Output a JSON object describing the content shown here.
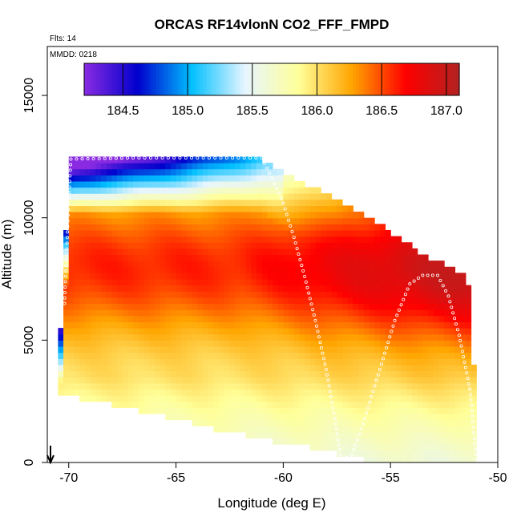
{
  "chart_data": {
    "type": "heatmap",
    "title": "ORCAS RF14vlonN CO2_FFF_FMPD",
    "annotations": [
      "Flts: 14",
      "MMDD: 0218"
    ],
    "xlabel": "Longitude (deg E)",
    "ylabel": "Altitude (m)",
    "xlim": [
      -71,
      -50
    ],
    "ylim": [
      0,
      17000
    ],
    "x_ticks": [
      -70,
      -65,
      -60,
      -55,
      -50
    ],
    "y_ticks": [
      0,
      5000,
      10000,
      15000
    ],
    "x_tick_labels": [
      "-70",
      "-65",
      "-60",
      "-55",
      "-50"
    ],
    "y_tick_labels": [
      "0",
      "5000",
      "10000",
      "15000"
    ],
    "colorbar": {
      "range": [
        184.2,
        187.1
      ],
      "ticks": [
        184.5,
        185.0,
        185.5,
        186.0,
        186.5,
        187.0
      ],
      "tick_labels": [
        "184.5",
        "185.0",
        "185.5",
        "186.0",
        "186.5",
        "187.0"
      ],
      "colors": [
        "#8a2be2",
        "#0000cd",
        "#00bfff",
        "#e6f5ff",
        "#ffff99",
        "#ffa500",
        "#ff0000",
        "#b22222"
      ]
    },
    "field_extent": [
      {
        "x": -70.6,
        "top": 2800,
        "bottom": 2800
      },
      {
        "x": -70.2,
        "top": 7800,
        "bottom": 2800
      },
      {
        "x": -70.0,
        "top": 12400,
        "bottom": 2800
      },
      {
        "x": -69.5,
        "top": 12450,
        "bottom": 2600
      },
      {
        "x": -69.0,
        "top": 12450,
        "bottom": 2600
      },
      {
        "x": -67.5,
        "top": 12450,
        "bottom": 2300
      },
      {
        "x": -66.0,
        "top": 12450,
        "bottom": 2000
      },
      {
        "x": -65.0,
        "top": 12450,
        "bottom": 1800
      },
      {
        "x": -63.5,
        "top": 12450,
        "bottom": 1400
      },
      {
        "x": -62.0,
        "top": 12450,
        "bottom": 1200
      },
      {
        "x": -61.0,
        "top": 12450,
        "bottom": 1000
      },
      {
        "x": -60.0,
        "top": 11800,
        "bottom": 800
      },
      {
        "x": -59.0,
        "top": 11400,
        "bottom": 700
      },
      {
        "x": -58.0,
        "top": 11000,
        "bottom": 500
      },
      {
        "x": -57.0,
        "top": 10500,
        "bottom": 300
      },
      {
        "x": -56.0,
        "top": 10000,
        "bottom": 100
      },
      {
        "x": -55.0,
        "top": 9400,
        "bottom": 100
      },
      {
        "x": -54.0,
        "top": 8800,
        "bottom": 100
      },
      {
        "x": -53.0,
        "top": 8300,
        "bottom": 100
      },
      {
        "x": -52.0,
        "top": 7900,
        "bottom": 100
      },
      {
        "x": -51.4,
        "top": 7700,
        "bottom": 100
      },
      {
        "x": -51.2,
        "top": 5000,
        "bottom": 100
      },
      {
        "x": -50.9,
        "top": 1200,
        "bottom": 100
      }
    ],
    "flight_track": [
      {
        "x": -70.2,
        "y": 6500
      },
      {
        "x": -70.1,
        "y": 8500
      },
      {
        "x": -70.0,
        "y": 10800
      },
      {
        "x": -69.9,
        "y": 12400
      },
      {
        "x": -67.0,
        "y": 12450
      },
      {
        "x": -64.0,
        "y": 12450
      },
      {
        "x": -61.0,
        "y": 12450
      },
      {
        "x": -60.4,
        "y": 11400
      },
      {
        "x": -60.0,
        "y": 10600
      },
      {
        "x": -59.5,
        "y": 9200
      },
      {
        "x": -59.0,
        "y": 7600
      },
      {
        "x": -58.5,
        "y": 5800
      },
      {
        "x": -58.0,
        "y": 3800
      },
      {
        "x": -57.6,
        "y": 1800
      },
      {
        "x": -57.3,
        "y": 100
      },
      {
        "x": -56.8,
        "y": 300
      },
      {
        "x": -56.2,
        "y": 1800
      },
      {
        "x": -55.5,
        "y": 3800
      },
      {
        "x": -54.8,
        "y": 5800
      },
      {
        "x": -54.1,
        "y": 7300
      },
      {
        "x": -53.5,
        "y": 7650
      },
      {
        "x": -52.8,
        "y": 7650
      },
      {
        "x": -52.3,
        "y": 6800
      },
      {
        "x": -51.8,
        "y": 5200
      },
      {
        "x": -51.3,
        "y": 3000
      },
      {
        "x": -51.0,
        "y": 100
      }
    ]
  }
}
